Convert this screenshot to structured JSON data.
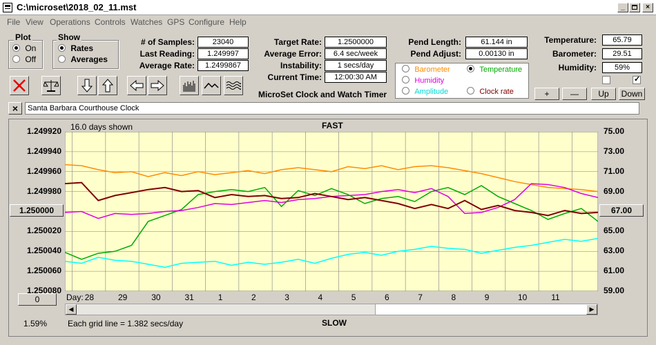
{
  "window": {
    "title": "C:\\microset\\2018_02_11.mst"
  },
  "menu": [
    "File",
    "View",
    "Operations",
    "Controls",
    "Watches",
    "GPS",
    "Configure",
    "Help"
  ],
  "plot_group": {
    "title": "Plot",
    "on": "On",
    "off": "Off",
    "selected": "On"
  },
  "show_group": {
    "title": "Show",
    "rates": "Rates",
    "averages": "Averages",
    "selected": "Rates"
  },
  "stats": {
    "samples_label": "# of Samples:",
    "samples": "23040",
    "last_reading_label": "Last Reading:",
    "last_reading": "1.249997",
    "average_rate_label": "Average Rate:",
    "average_rate": "1.2499867",
    "target_rate_label": "Target Rate:",
    "target_rate": "1.2500000",
    "average_error_label": "Average Error:",
    "average_error": "6.4 sec/week",
    "instability_label": "Instability:",
    "instability": "1 secs/day",
    "current_time_label": "Current Time:",
    "current_time": "12:00:30 AM",
    "pend_length_label": "Pend Length:",
    "pend_length": "61.144 in",
    "pend_adjust_label": "Pend Adjust:",
    "pend_adjust": "0.00130 in",
    "temperature_label": "Temperature:",
    "temperature": "65.79",
    "barometer_label": "Barometer:",
    "barometer": "29.51",
    "humidity_label": "Humidity:",
    "humidity": "59%"
  },
  "app_caption": "MicroSet Clock and Watch Timer",
  "sensor_options": {
    "barometer": "Barometer",
    "temperature": "Temperature",
    "humidity": "Humidity",
    "amplitude": "Amplitude",
    "clock_rate": "Clock rate",
    "selected": "Temperature"
  },
  "sensor_buttons": {
    "plus": "+",
    "minus": "—",
    "up": "Up",
    "down": "Down"
  },
  "checkboxes": {
    "left": false,
    "right": true
  },
  "clock_name": "Santa Barbara Courthouse Clock",
  "clear_label": "×",
  "colors": {
    "plot_bg": "#ffffcc",
    "grid": "#808080",
    "barometer": "#ff8c00",
    "temperature": "#00aa00",
    "humidity": "#e000e0",
    "amplitude": "#00ffff",
    "rate": "#800000",
    "stop": "#e00000"
  },
  "chart": {
    "days_shown": "16.0 days shown",
    "fast_label": "FAST",
    "slow_label": "SLOW",
    "left_axis_button": "1.250000",
    "right_axis_button": "67.00",
    "zero_button": "0",
    "percent": "1.59%",
    "grid_note": "Each grid line = 1.382 secs/day",
    "day_label": "Day:"
  },
  "chart_data": {
    "type": "line",
    "title": "",
    "left_axis": {
      "ticks": [
        "1.249920",
        "1.249940",
        "1.249960",
        "1.249980",
        "1.250000",
        "1.250020",
        "1.250040",
        "1.250060",
        "1.250080"
      ],
      "range": [
        1.24992,
        1.25008
      ]
    },
    "right_axis": {
      "ticks": [
        "75.00",
        "73.00",
        "71.00",
        "69.00",
        "67.00",
        "65.00",
        "63.00",
        "61.00",
        "59.00"
      ],
      "range": [
        59,
        75
      ]
    },
    "x_ticks": [
      "28",
      "29",
      "30",
      "31",
      "1",
      "2",
      "3",
      "4",
      "5",
      "6",
      "7",
      "8",
      "9",
      "10",
      "11"
    ],
    "x_range": [
      0,
      16
    ],
    "grid": true,
    "series": [
      {
        "name": "",
        "color": "#ff8c00",
        "axis": "right",
        "points": [
          [
            0,
            71.7
          ],
          [
            0.5,
            71.6
          ],
          [
            1,
            71.2
          ],
          [
            1.5,
            70.9
          ],
          [
            2,
            71.0
          ],
          [
            2.5,
            70.5
          ],
          [
            3,
            70.9
          ],
          [
            3.5,
            70.6
          ],
          [
            4,
            71.0
          ],
          [
            4.5,
            70.7
          ],
          [
            5,
            70.9
          ],
          [
            5.5,
            71.1
          ],
          [
            6,
            70.8
          ],
          [
            6.5,
            71.2
          ],
          [
            7,
            71.4
          ],
          [
            7.5,
            71.2
          ],
          [
            8,
            71.0
          ],
          [
            8.5,
            71.5
          ],
          [
            9,
            71.3
          ],
          [
            9.5,
            71.6
          ],
          [
            10,
            71.2
          ],
          [
            10.5,
            71.5
          ],
          [
            11,
            71.6
          ],
          [
            11.5,
            71.4
          ],
          [
            12,
            71.1
          ],
          [
            12.5,
            70.8
          ],
          [
            13,
            70.4
          ],
          [
            13.5,
            70.0
          ],
          [
            14,
            69.7
          ],
          [
            14.5,
            69.4
          ],
          [
            15,
            69.3
          ],
          [
            15.5,
            69.2
          ],
          [
            16,
            69.0
          ]
        ]
      },
      {
        "name": "",
        "color": "#00aa00",
        "axis": "right",
        "points": [
          [
            0,
            62.9
          ],
          [
            0.5,
            62.2
          ],
          [
            1,
            62.8
          ],
          [
            1.5,
            63.0
          ],
          [
            2,
            63.6
          ],
          [
            2.5,
            66.0
          ],
          [
            3,
            66.6
          ],
          [
            3.5,
            67.2
          ],
          [
            4,
            68.7
          ],
          [
            4.5,
            69.0
          ],
          [
            5,
            69.2
          ],
          [
            5.5,
            69.0
          ],
          [
            6,
            69.4
          ],
          [
            6.5,
            67.5
          ],
          [
            7,
            69.1
          ],
          [
            7.5,
            68.6
          ],
          [
            8,
            69.3
          ],
          [
            8.5,
            68.7
          ],
          [
            9,
            67.8
          ],
          [
            9.5,
            68.3
          ],
          [
            10,
            68.5
          ],
          [
            10.5,
            68.0
          ],
          [
            11,
            69.0
          ],
          [
            11.5,
            69.4
          ],
          [
            12,
            68.7
          ],
          [
            12.5,
            69.6
          ],
          [
            13,
            68.5
          ],
          [
            13.5,
            67.8
          ],
          [
            14,
            67.1
          ],
          [
            14.5,
            66.2
          ],
          [
            15,
            66.8
          ],
          [
            15.5,
            67.3
          ],
          [
            16,
            66.0
          ]
        ]
      },
      {
        "name": "",
        "color": "#e000e0",
        "axis": "right",
        "points": [
          [
            0,
            66.9
          ],
          [
            0.5,
            67.0
          ],
          [
            1,
            66.3
          ],
          [
            1.5,
            66.8
          ],
          [
            2,
            66.7
          ],
          [
            2.5,
            66.8
          ],
          [
            3,
            67.0
          ],
          [
            3.5,
            67.1
          ],
          [
            4,
            67.4
          ],
          [
            4.5,
            67.8
          ],
          [
            5,
            67.7
          ],
          [
            5.5,
            67.9
          ],
          [
            6,
            68.1
          ],
          [
            6.5,
            67.9
          ],
          [
            7,
            68.2
          ],
          [
            7.5,
            68.3
          ],
          [
            8,
            68.5
          ],
          [
            8.5,
            68.6
          ],
          [
            9,
            68.7
          ],
          [
            9.5,
            69.0
          ],
          [
            10,
            69.2
          ],
          [
            10.5,
            68.9
          ],
          [
            11,
            69.3
          ],
          [
            11.5,
            68.5
          ],
          [
            12,
            66.8
          ],
          [
            12.5,
            66.9
          ],
          [
            13,
            67.4
          ],
          [
            13.5,
            68.2
          ],
          [
            14,
            69.8
          ],
          [
            14.5,
            69.7
          ],
          [
            15,
            69.4
          ],
          [
            15.5,
            68.8
          ],
          [
            16,
            68.4
          ]
        ]
      },
      {
        "name": "",
        "color": "#00ffff",
        "axis": "right",
        "points": [
          [
            0,
            62.0
          ],
          [
            0.5,
            61.8
          ],
          [
            1,
            62.4
          ],
          [
            1.5,
            62.1
          ],
          [
            2,
            62.0
          ],
          [
            2.5,
            61.7
          ],
          [
            3,
            61.4
          ],
          [
            3.5,
            61.8
          ],
          [
            4,
            61.9
          ],
          [
            4.5,
            62.0
          ],
          [
            5,
            61.6
          ],
          [
            5.5,
            61.9
          ],
          [
            6,
            61.7
          ],
          [
            6.5,
            61.9
          ],
          [
            7,
            62.2
          ],
          [
            7.5,
            61.8
          ],
          [
            8,
            62.3
          ],
          [
            8.5,
            62.7
          ],
          [
            9,
            62.9
          ],
          [
            9.5,
            62.6
          ],
          [
            10,
            63.0
          ],
          [
            10.5,
            63.2
          ],
          [
            11,
            63.5
          ],
          [
            11.5,
            63.3
          ],
          [
            12,
            63.2
          ],
          [
            12.5,
            62.8
          ],
          [
            13,
            63.1
          ],
          [
            13.5,
            63.4
          ],
          [
            14,
            63.6
          ],
          [
            14.5,
            63.9
          ],
          [
            15,
            64.2
          ],
          [
            15.5,
            64.0
          ],
          [
            16,
            64.3
          ]
        ]
      },
      {
        "name": "",
        "color": "#800000",
        "axis": "left",
        "points": [
          [
            0,
            1.249972
          ],
          [
            0.5,
            1.249971
          ],
          [
            1,
            1.249989
          ],
          [
            1.5,
            1.249984
          ],
          [
            2,
            1.249981
          ],
          [
            2.5,
            1.249978
          ],
          [
            3,
            1.249976
          ],
          [
            3.5,
            1.24998
          ],
          [
            4,
            1.249979
          ],
          [
            4.5,
            1.249986
          ],
          [
            5,
            1.249983
          ],
          [
            5.5,
            1.249985
          ],
          [
            6,
            1.249984
          ],
          [
            6.5,
            1.249987
          ],
          [
            7,
            1.249986
          ],
          [
            7.5,
            1.249982
          ],
          [
            8,
            1.249985
          ],
          [
            8.5,
            1.249988
          ],
          [
            9,
            1.249986
          ],
          [
            9.5,
            1.249989
          ],
          [
            10,
            1.249992
          ],
          [
            10.5,
            1.249997
          ],
          [
            11,
            1.249993
          ],
          [
            11.5,
            1.249997
          ],
          [
            12,
            1.249989
          ],
          [
            12.5,
            1.249998
          ],
          [
            13,
            1.249994
          ],
          [
            13.5,
            1.249999
          ],
          [
            14,
            1.250001
          ],
          [
            14.5,
            1.250004
          ],
          [
            15,
            1.249999
          ],
          [
            15.5,
            1.250002
          ],
          [
            16,
            1.250001
          ]
        ]
      }
    ]
  }
}
